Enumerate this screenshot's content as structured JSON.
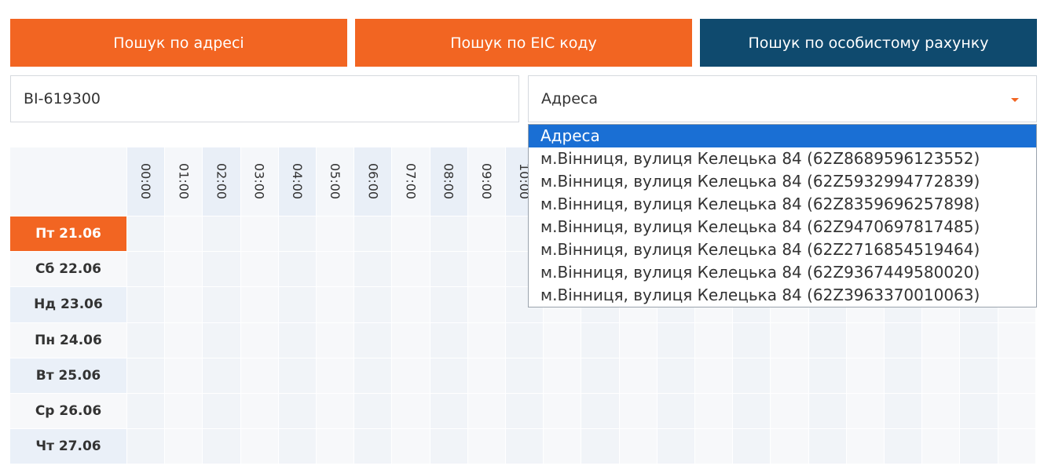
{
  "tabs": [
    "Пошук по адресі",
    "Пошук по EIC коду",
    "Пошук по особистому рахунку"
  ],
  "search_input": "BI-619300",
  "select": {
    "value": "Адреса",
    "options": [
      "Адреса",
      "м.Вінниця, вулиця Келецька 84 (62Z8689596123552)",
      "м.Вінниця, вулиця Келецька 84 (62Z5932994772839)",
      "м.Вінниця, вулиця Келецька 84 (62Z8359696257898)",
      "м.Вінниця, вулиця Келецька 84 (62Z9470697817485)",
      "м.Вінниця, вулиця Келецька 84 (62Z2716854519464)",
      "м.Вінниця, вулиця Келецька 84 (62Z9367449580020)",
      "м.Вінниця, вулиця Келецька 84 (62Z3963370010063)"
    ]
  },
  "schedule": {
    "hours": [
      "00:00",
      "01:00",
      "02:00",
      "03:00",
      "04:00",
      "05:00",
      "06:00",
      "07:00",
      "08:00",
      "09:00",
      "10:00"
    ],
    "days": [
      "Пт 21.06",
      "Сб 22.06",
      "Нд 23.06",
      "Пн 24.06",
      "Вт 25.06",
      "Ср 26.06",
      "Чт 27.06"
    ]
  }
}
